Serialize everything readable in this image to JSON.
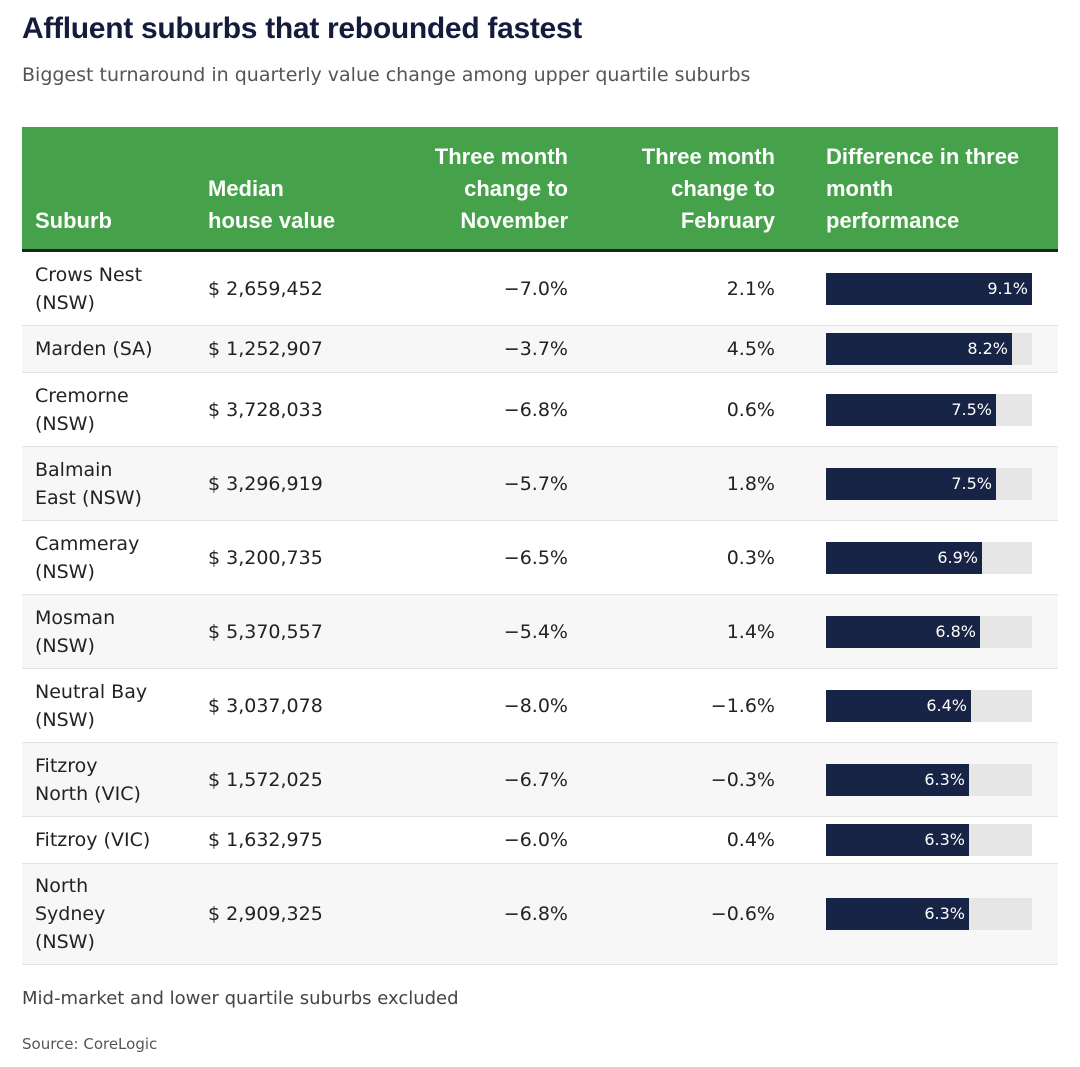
{
  "title": "Affluent suburbs that rebounded fastest",
  "subtitle": "Biggest turnaround in quarterly value change among upper quartile suburbs",
  "headers": {
    "suburb": "Suburb",
    "median_line1": "Median",
    "median_line2": "house value",
    "nov_line1": "Three month",
    "nov_line2": "change to",
    "nov_line3": "November",
    "feb_line1": "Three month",
    "feb_line2": "change to",
    "feb_line3": "February",
    "diff_line1": "Difference in three",
    "diff_line2": "month",
    "diff_line3": "performance"
  },
  "note": "Mid-market and lower quartile suburbs excluded",
  "source": "Source: CoreLogic",
  "colors": {
    "header_bg": "#46a24a",
    "bar_fill": "#172445",
    "bar_track": "#e6e6e6",
    "title": "#141c3c"
  },
  "chart_data": {
    "type": "table",
    "columns": [
      "Suburb",
      "Median house value",
      "Three month change to November",
      "Three month change to February",
      "Difference in three month performance"
    ],
    "bar_max": 9.1,
    "rows": [
      {
        "suburb_lines": [
          "Crows Nest",
          "(NSW)"
        ],
        "median": "$ 2,659,452",
        "nov": "−7.0%",
        "feb": "2.1%",
        "diff": 9.1,
        "diff_label": "9.1%"
      },
      {
        "suburb_lines": [
          "Marden (SA)"
        ],
        "median": "$ 1,252,907",
        "nov": "−3.7%",
        "feb": "4.5%",
        "diff": 8.2,
        "diff_label": "8.2%"
      },
      {
        "suburb_lines": [
          "Cremorne",
          "(NSW)"
        ],
        "median": "$ 3,728,033",
        "nov": "−6.8%",
        "feb": "0.6%",
        "diff": 7.5,
        "diff_label": "7.5%"
      },
      {
        "suburb_lines": [
          "Balmain",
          "East (NSW)"
        ],
        "median": "$ 3,296,919",
        "nov": "−5.7%",
        "feb": "1.8%",
        "diff": 7.5,
        "diff_label": "7.5%"
      },
      {
        "suburb_lines": [
          "Cammeray",
          "(NSW)"
        ],
        "median": "$ 3,200,735",
        "nov": "−6.5%",
        "feb": "0.3%",
        "diff": 6.9,
        "diff_label": "6.9%"
      },
      {
        "suburb_lines": [
          "Mosman",
          "(NSW)"
        ],
        "median": "$ 5,370,557",
        "nov": "−5.4%",
        "feb": "1.4%",
        "diff": 6.8,
        "diff_label": "6.8%"
      },
      {
        "suburb_lines": [
          "Neutral Bay",
          "(NSW)"
        ],
        "median": "$ 3,037,078",
        "nov": "−8.0%",
        "feb": "−1.6%",
        "diff": 6.4,
        "diff_label": "6.4%"
      },
      {
        "suburb_lines": [
          "Fitzroy",
          "North (VIC)"
        ],
        "median": "$ 1,572,025",
        "nov": "−6.7%",
        "feb": "−0.3%",
        "diff": 6.3,
        "diff_label": "6.3%"
      },
      {
        "suburb_lines": [
          "Fitzroy (VIC)"
        ],
        "median": "$ 1,632,975",
        "nov": "−6.0%",
        "feb": "0.4%",
        "diff": 6.3,
        "diff_label": "6.3%"
      },
      {
        "suburb_lines": [
          "North",
          "Sydney",
          "(NSW)"
        ],
        "median": "$ 2,909,325",
        "nov": "−6.8%",
        "feb": "−0.6%",
        "diff": 6.3,
        "diff_label": "6.3%"
      }
    ]
  }
}
